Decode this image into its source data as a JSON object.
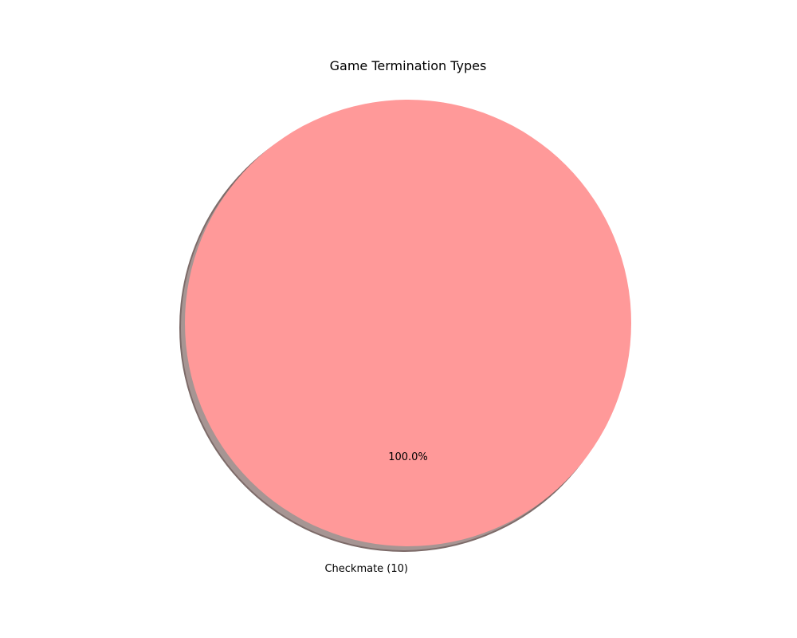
{
  "chart_data": {
    "type": "pie",
    "title": "Game Termination Types",
    "categories": [
      "Checkmate (10)"
    ],
    "values": [
      10
    ],
    "percent_labels": [
      "100.0%"
    ],
    "colors": [
      "#ff9999"
    ],
    "shadow": true,
    "legend": "none"
  }
}
